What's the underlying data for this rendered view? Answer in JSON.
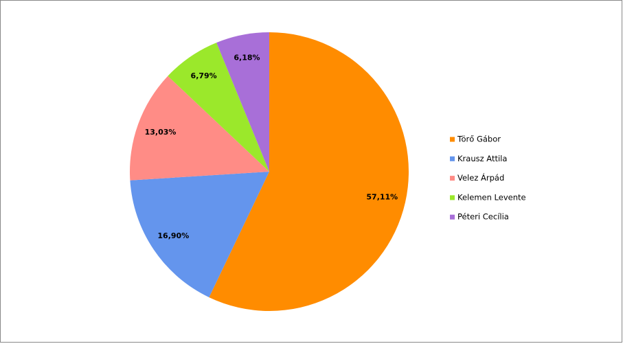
{
  "chart_data": {
    "type": "pie",
    "categories": [
      "Törő Gábor",
      "Krausz Attila",
      "Velez Árpád",
      "Kelemen Levente",
      "Péteri Cecília"
    ],
    "values": [
      57.11,
      16.9,
      13.03,
      6.79,
      6.18
    ],
    "value_labels": [
      "57,11%",
      "16,90%",
      "13,03%",
      "6,79%",
      "6,18%"
    ],
    "colors": [
      "#ff8c00",
      "#6495ed",
      "#ff8c86",
      "#9be82b",
      "#a86fd8"
    ],
    "legend": "right"
  }
}
